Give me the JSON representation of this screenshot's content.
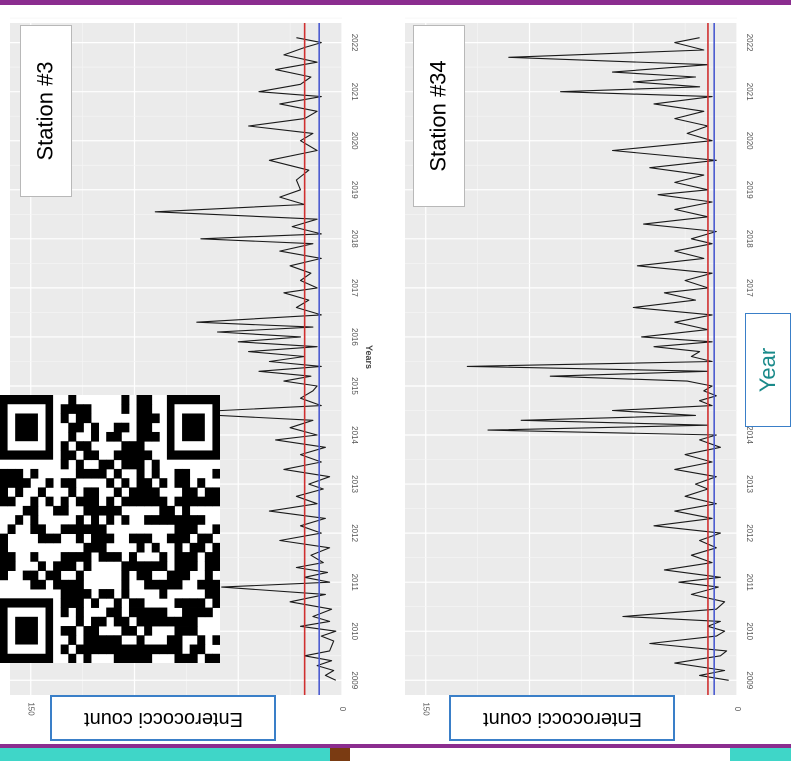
{
  "chart_data": [
    {
      "type": "line",
      "title": "Station #3",
      "xlabel": "Years",
      "ylabel": "Enterococci count",
      "x_ticks": [
        "2009",
        "2010",
        "2011",
        "2012",
        "2013",
        "2014",
        "2015",
        "2016",
        "2017",
        "2018",
        "2019",
        "2020",
        "2021",
        "2022"
      ],
      "y_ticks": [
        "0",
        "150"
      ],
      "ylim": [
        0,
        160
      ],
      "xlim": [
        2008.7,
        2022.4
      ],
      "reference_lines": [
        {
          "color": "#d03030",
          "value": 18
        },
        {
          "color": "#4a5ad0",
          "value": 11
        }
      ],
      "series": [
        {
          "x": [
            2009.0,
            2009.1,
            2009.2,
            2009.3,
            2009.4,
            2009.5,
            2009.6,
            2009.8,
            2009.9,
            2010.0,
            2010.1,
            2010.2,
            2010.3,
            2010.45,
            2010.6,
            2010.75,
            2010.9,
            2011.0,
            2011.1,
            2011.2,
            2011.3,
            2011.4,
            2011.55,
            2011.7,
            2011.85,
            2012.0,
            2012.15,
            2012.3,
            2012.45,
            2012.6,
            2012.75,
            2012.9,
            2013.0,
            2013.15,
            2013.3,
            2013.45,
            2013.6,
            2013.75,
            2013.9,
            2014.0,
            2014.15,
            2014.3,
            2014.45,
            2014.6,
            2014.75,
            2014.9,
            2015.0,
            2015.1,
            2015.2,
            2015.3,
            2015.4,
            2015.5,
            2015.6,
            2015.7,
            2015.8,
            2015.9,
            2016.0,
            2016.1,
            2016.2,
            2016.3,
            2016.45,
            2016.6,
            2016.75,
            2016.9,
            2017.0,
            2017.15,
            2017.3,
            2017.45,
            2017.6,
            2017.75,
            2017.9,
            2018.0,
            2018.1,
            2018.25,
            2018.4,
            2018.55,
            2018.7,
            2018.85,
            2019.0,
            2019.2,
            2019.4,
            2019.6,
            2019.8,
            2020.0,
            2020.15,
            2020.3,
            2020.45,
            2020.6,
            2020.75,
            2020.9,
            2021.0,
            2021.15,
            2021.3,
            2021.45,
            2021.6,
            2021.75,
            2021.9,
            2022.0,
            2022.1
          ],
          "values": [
            3,
            8,
            4,
            12,
            5,
            18,
            6,
            4,
            10,
            3,
            20,
            6,
            14,
            5,
            25,
            8,
            58,
            6,
            18,
            7,
            22,
            9,
            15,
            6,
            30,
            10,
            20,
            8,
            35,
            12,
            22,
            9,
            16,
            6,
            28,
            10,
            20,
            8,
            32,
            12,
            25,
            14,
            82,
            10,
            20,
            14,
            12,
            28,
            15,
            40,
            10,
            35,
            18,
            45,
            12,
            50,
            20,
            60,
            14,
            70,
            10,
            22,
            16,
            28,
            12,
            20,
            15,
            25,
            10,
            30,
            14,
            68,
            10,
            24,
            12,
            90,
            18,
            30,
            20,
            22,
            16,
            35,
            12,
            20,
            14,
            45,
            18,
            12,
            30,
            10,
            40,
            20,
            15,
            32,
            12,
            28,
            18,
            10,
            22
          ]
        }
      ]
    },
    {
      "type": "line",
      "title": "Station #34",
      "xlabel": "Year",
      "ylabel": "Enterococci count",
      "x_ticks": [
        "2009",
        "2010",
        "2011",
        "2012",
        "2013",
        "2014",
        "2015",
        "2016",
        "2017",
        "2018",
        "2019",
        "2020",
        "2021",
        "2022"
      ],
      "y_ticks": [
        "0",
        "150"
      ],
      "ylim": [
        0,
        160
      ],
      "xlim": [
        2008.7,
        2022.4
      ],
      "reference_lines": [
        {
          "color": "#d03030",
          "value": 14
        },
        {
          "color": "#4a5ad0",
          "value": 11
        }
      ],
      "series": [
        {
          "x": [
            2009.0,
            2009.1,
            2009.2,
            2009.35,
            2009.5,
            2009.6,
            2009.75,
            2009.9,
            2010.0,
            2010.1,
            2010.2,
            2010.3,
            2010.45,
            2010.6,
            2010.75,
            2010.9,
            2011.0,
            2011.1,
            2011.25,
            2011.4,
            2011.55,
            2011.7,
            2011.85,
            2012.0,
            2012.15,
            2012.3,
            2012.45,
            2012.6,
            2012.75,
            2012.9,
            2013.0,
            2013.15,
            2013.3,
            2013.45,
            2013.6,
            2013.75,
            2013.9,
            2014.0,
            2014.1,
            2014.2,
            2014.3,
            2014.4,
            2014.5,
            2014.6,
            2014.7,
            2014.8,
            2014.9,
            2015.0,
            2015.1,
            2015.2,
            2015.3,
            2015.4,
            2015.5,
            2015.6,
            2015.7,
            2015.8,
            2015.9,
            2016.0,
            2016.15,
            2016.3,
            2016.45,
            2016.6,
            2016.75,
            2016.9,
            2017.0,
            2017.15,
            2017.3,
            2017.45,
            2017.6,
            2017.75,
            2017.9,
            2018.0,
            2018.15,
            2018.3,
            2018.45,
            2018.6,
            2018.75,
            2018.9,
            2019.0,
            2019.15,
            2019.3,
            2019.45,
            2019.6,
            2019.8,
            2020.0,
            2020.15,
            2020.3,
            2020.45,
            2020.6,
            2020.75,
            2020.9,
            2021.0,
            2021.1,
            2021.2,
            2021.3,
            2021.4,
            2021.55,
            2021.7,
            2021.85,
            2022.0,
            2022.1
          ],
          "values": [
            4,
            18,
            6,
            30,
            8,
            5,
            42,
            10,
            6,
            14,
            8,
            55,
            10,
            6,
            22,
            9,
            28,
            8,
            35,
            12,
            22,
            10,
            18,
            8,
            40,
            12,
            30,
            10,
            25,
            14,
            20,
            10,
            30,
            12,
            25,
            8,
            18,
            10,
            120,
            14,
            104,
            20,
            60,
            12,
            18,
            10,
            16,
            12,
            24,
            90,
            14,
            130,
            12,
            22,
            18,
            40,
            12,
            46,
            14,
            30,
            12,
            50,
            20,
            35,
            14,
            25,
            12,
            48,
            16,
            30,
            12,
            22,
            10,
            45,
            14,
            30,
            12,
            38,
            14,
            30,
            16,
            42,
            10,
            60,
            12,
            24,
            14,
            30,
            16,
            40,
            12,
            85,
            18,
            50,
            20,
            60,
            14,
            110,
            16,
            30,
            18
          ]
        }
      ]
    }
  ]
}
